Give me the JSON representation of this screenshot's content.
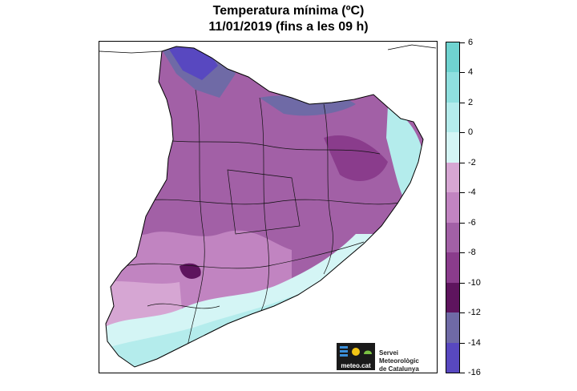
{
  "title": {
    "line1": "Temperatura mínima (ºC)",
    "line2": "11/01/2019 (fins a les 09 h)"
  },
  "legend": {
    "labels": [
      "6",
      "4",
      "2",
      "0",
      "-2",
      "-4",
      "-6",
      "-8",
      "-10",
      "-12",
      "-14",
      "-16"
    ],
    "colors": [
      "#6fd3d0",
      "#8fe0df",
      "#b4ecec",
      "#d4f5f5",
      "#d6a6d3",
      "#c184c1",
      "#a260a6",
      "#8a3c8c",
      "#5e145e",
      "#6f6aa6",
      "#5848c0",
      "#6a3fd0"
    ]
  },
  "logo": {
    "brand": "meteo.cat",
    "org_line1": "Servei Meteorològic",
    "org_line2": "de Catalunya"
  }
}
